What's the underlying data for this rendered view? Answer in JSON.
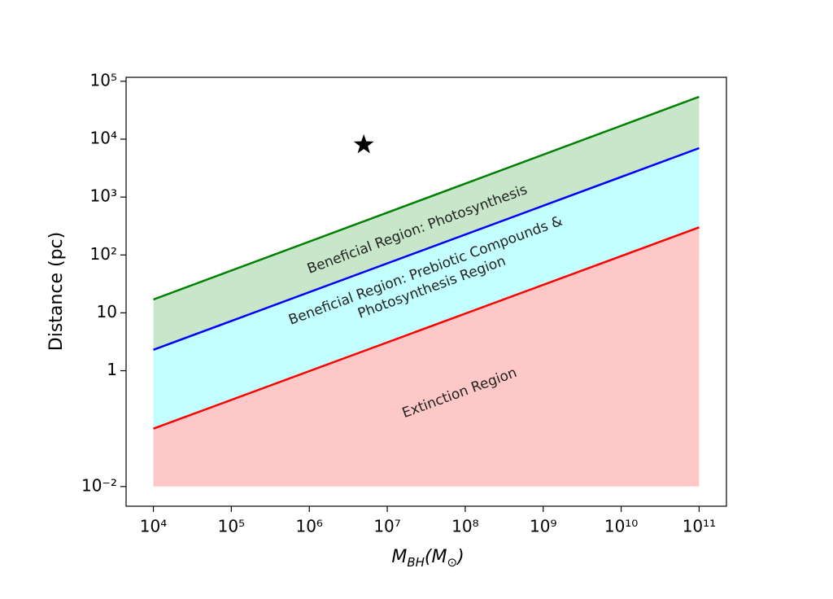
{
  "chart_data": {
    "type": "area",
    "x_label": [
      "M",
      "BH",
      "(M",
      "⊙",
      ")"
    ],
    "y_label": "Distance (pc)",
    "log_x": true,
    "log_y": true,
    "xlim": [
      4467,
      224000000000
    ],
    "ylim": [
      0.00457,
      117000
    ],
    "xticks": [
      {
        "value": 10000,
        "label": "10⁴"
      },
      {
        "value": 100000,
        "label": "10⁵"
      },
      {
        "value": 1000000,
        "label": "10⁶"
      },
      {
        "value": 10000000,
        "label": "10⁷"
      },
      {
        "value": 100000000,
        "label": "10⁸"
      },
      {
        "value": 1000000000,
        "label": "10⁹"
      },
      {
        "value": 10000000000,
        "label": "10¹⁰"
      },
      {
        "value": 100000000000,
        "label": "10¹¹"
      }
    ],
    "yticks": [
      {
        "value": 100000,
        "label": "10⁵"
      },
      {
        "value": 10000,
        "label": "10⁴"
      },
      {
        "value": 1000,
        "label": "10³"
      },
      {
        "value": 100,
        "label": "10²"
      },
      10,
      1,
      {
        "value": 0.01,
        "label": "10⁻²"
      }
    ],
    "x": [
      10000,
      100000000000
    ],
    "fill_floor": 0.01,
    "series": [
      {
        "color": "#008000",
        "fill": "#c8e6c9",
        "values": [
          17,
          54000
        ]
      },
      {
        "color": "#0000ff",
        "fill": "#c4ffff",
        "values": [
          2.3,
          7000
        ]
      },
      {
        "color": "#ff0000",
        "fill": "#ffc8c8",
        "values": [
          0.1,
          300
        ]
      }
    ],
    "marker": {
      "x": 5000000,
      "y": 8000,
      "color": "#000000"
    },
    "annotations": [
      [
        "Beneficial Region: Photosynthesis"
      ],
      [
        "Beneficial Region: Prebiotic Compounds &",
        "Photosynthesis Region"
      ],
      [
        "Extinction Region"
      ]
    ]
  }
}
